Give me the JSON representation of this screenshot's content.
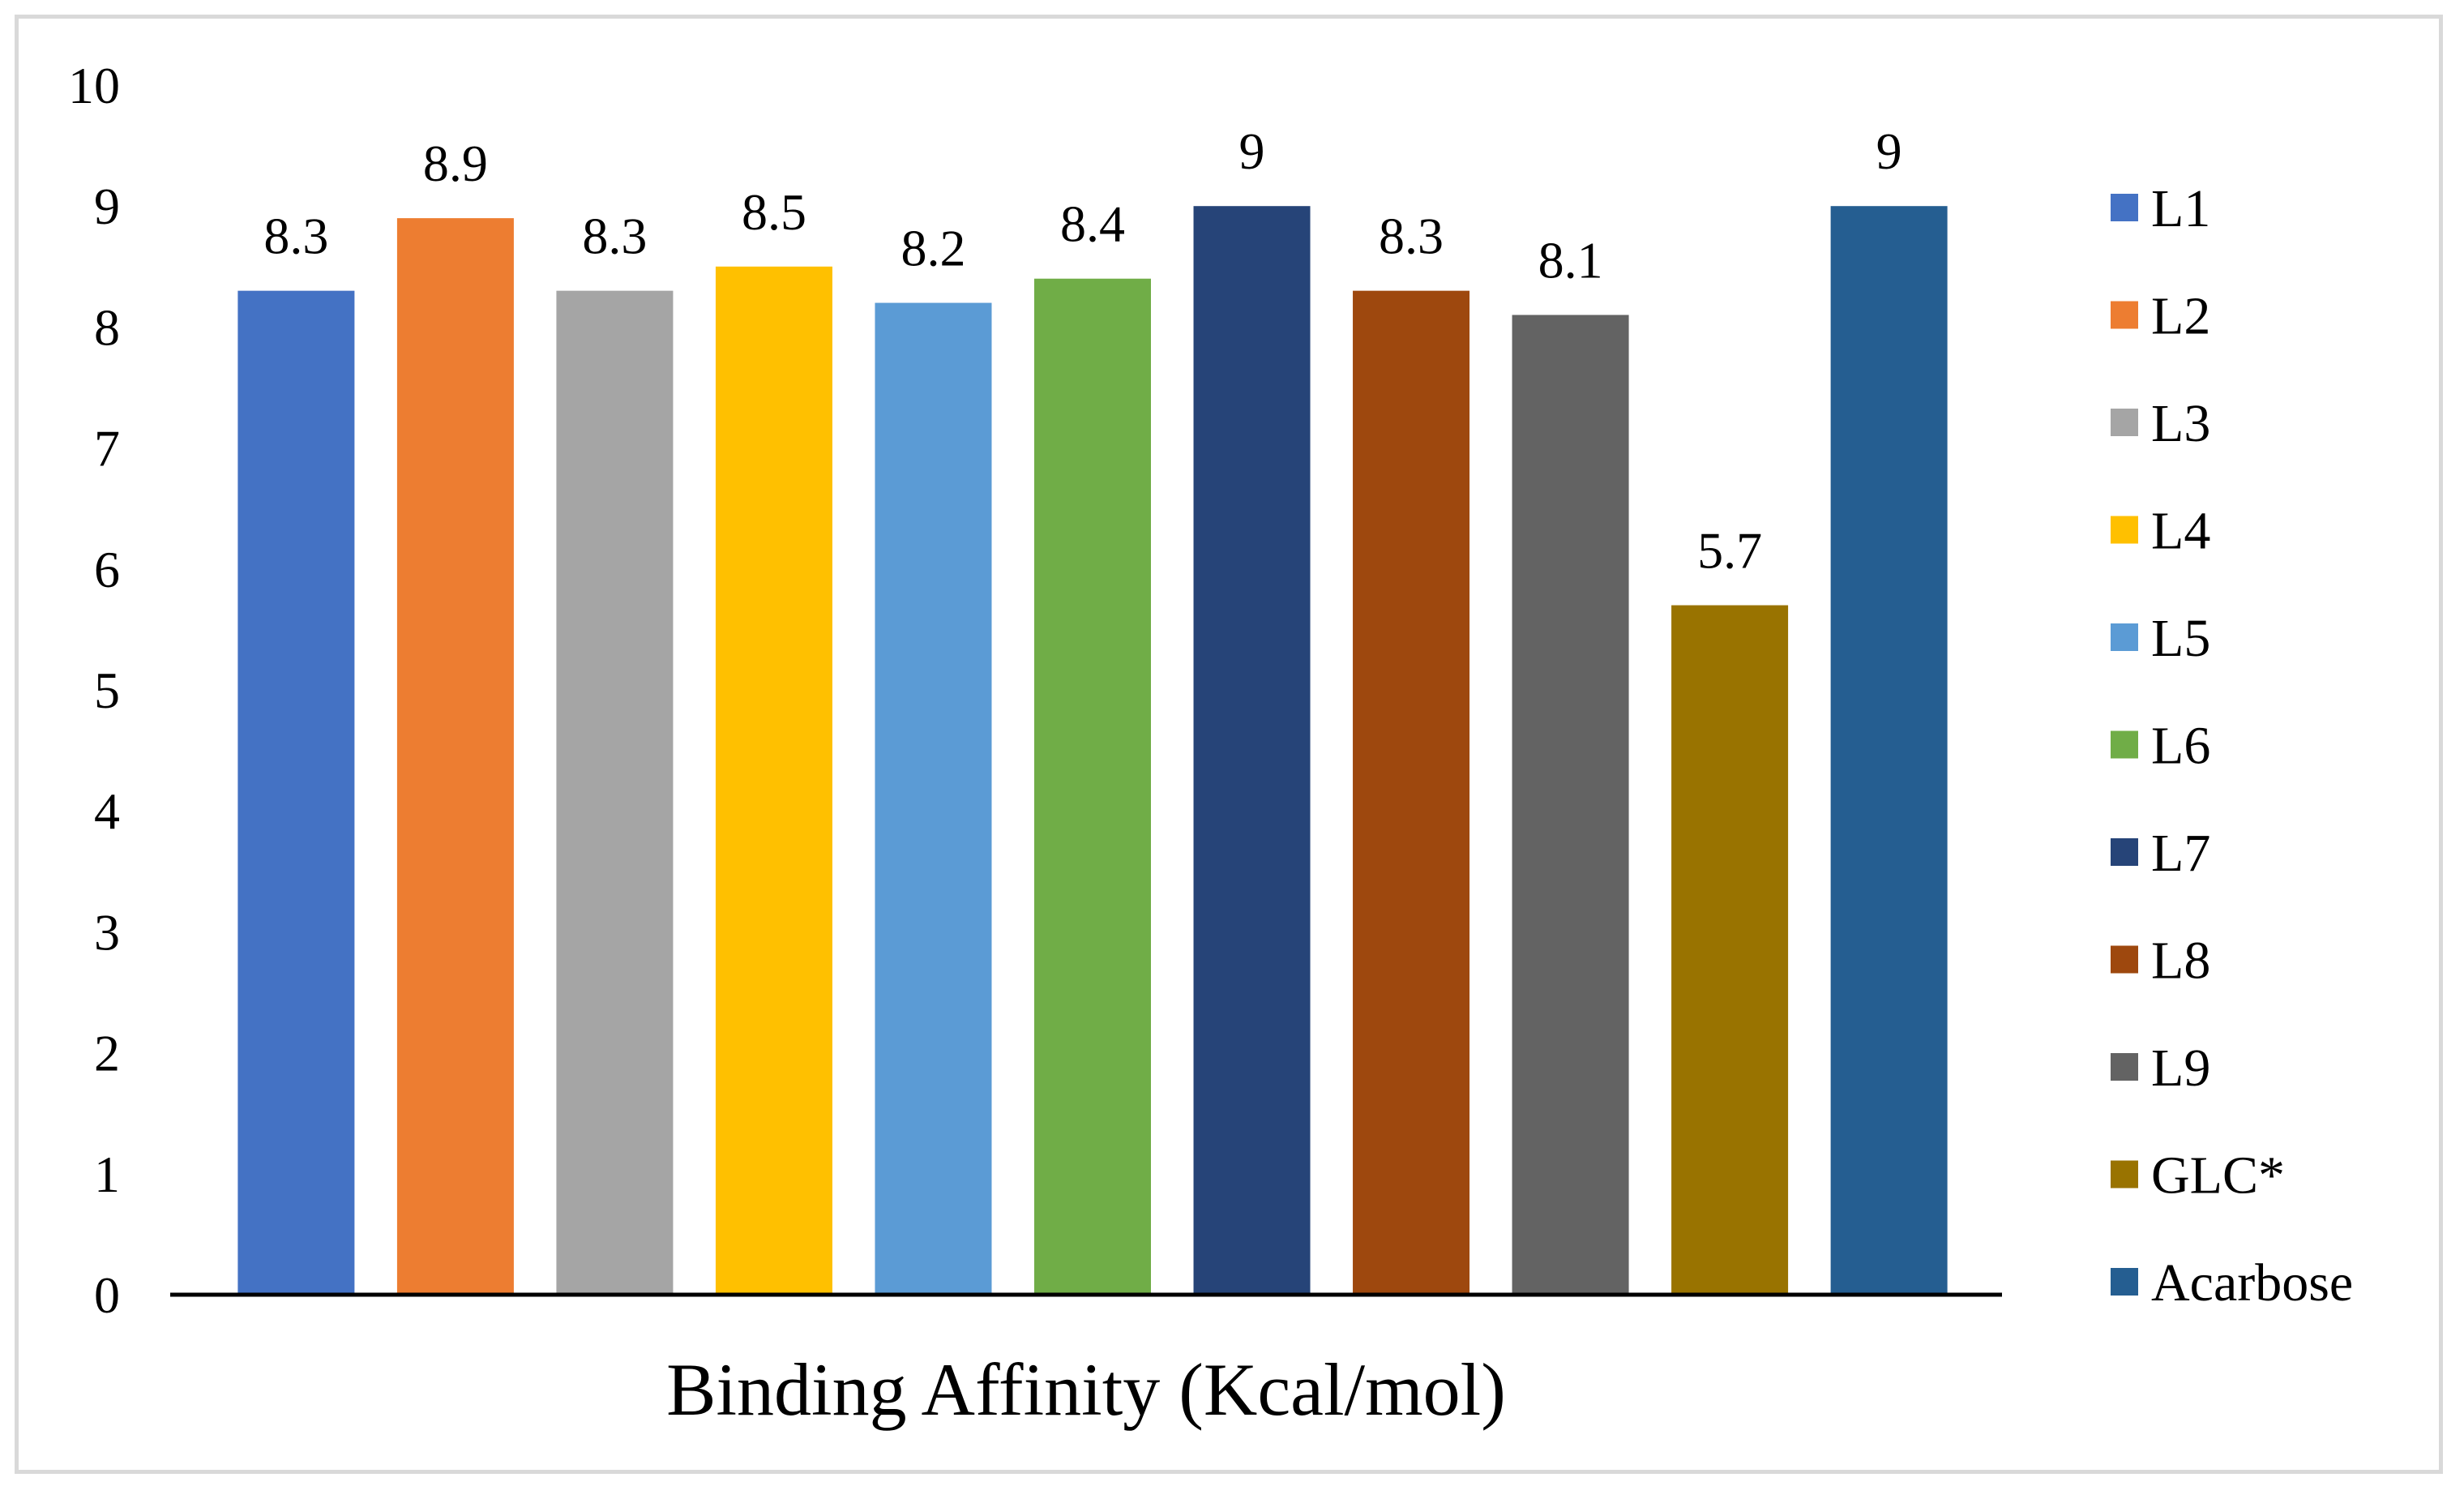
{
  "chart_data": {
    "type": "bar",
    "title": "",
    "xlabel": "Binding Affinity (Kcal/mol)",
    "ylabel": "",
    "ylim": [
      0,
      10
    ],
    "yticks": [
      "0",
      "1",
      "2",
      "3",
      "4",
      "5",
      "6",
      "7",
      "8",
      "9",
      "10"
    ],
    "grid": false,
    "legend_position": "right",
    "series": [
      {
        "name": "L1",
        "value": 8.3,
        "label": "8.3",
        "color": "#4472C4"
      },
      {
        "name": "L2",
        "value": 8.9,
        "label": "8.9",
        "color": "#ED7D31"
      },
      {
        "name": "L3",
        "value": 8.3,
        "label": "8.3",
        "color": "#A5A5A5"
      },
      {
        "name": "L4",
        "value": 8.5,
        "label": "8.5",
        "color": "#FFC000"
      },
      {
        "name": "L5",
        "value": 8.2,
        "label": "8.2",
        "color": "#5B9BD5"
      },
      {
        "name": "L6",
        "value": 8.4,
        "label": "8.4",
        "color": "#70AD47"
      },
      {
        "name": "L7",
        "value": 9,
        "label": "9",
        "color": "#264478"
      },
      {
        "name": "L8",
        "value": 8.3,
        "label": "8.3",
        "color": "#9E480E"
      },
      {
        "name": "L9",
        "value": 8.1,
        "label": "8.1",
        "color": "#636363"
      },
      {
        "name": "GLC*",
        "value": 5.7,
        "label": "5.7",
        "color": "#997300"
      },
      {
        "name": "Acarbose",
        "value": 9,
        "label": "9",
        "color": "#255E91"
      }
    ]
  }
}
